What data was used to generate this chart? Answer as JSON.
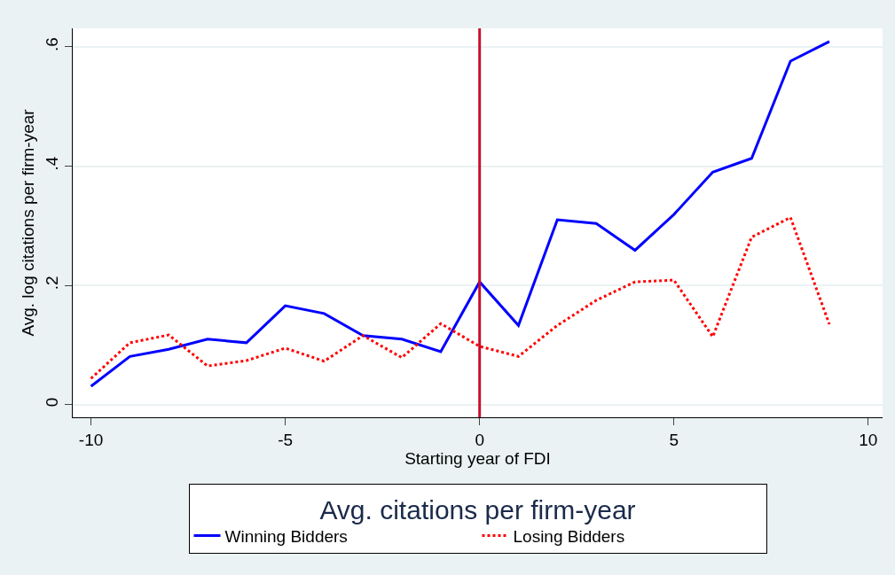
{
  "chart_data": {
    "type": "line",
    "xlabel": "Starting year of FDI",
    "ylabel": "Avg. log citations per firm-year",
    "legend_title": "Avg. citations per firm-year",
    "x": [
      -10,
      -9,
      -8,
      -7,
      -6,
      -5,
      -4,
      -3,
      -2,
      -1,
      0,
      1,
      2,
      3,
      4,
      5,
      6,
      7,
      8,
      9
    ],
    "series": [
      {
        "name": "Winning Bidders",
        "color": "#0000ff",
        "line_style": "solid",
        "values": [
          0.031,
          0.081,
          0.093,
          0.11,
          0.104,
          0.166,
          0.153,
          0.116,
          0.11,
          0.089,
          0.206,
          0.133,
          0.31,
          0.304,
          0.259,
          0.319,
          0.39,
          0.413,
          0.576,
          0.609
        ]
      },
      {
        "name": "Losing Bidders",
        "color": "#ff0000",
        "line_style": "dotted",
        "values": [
          0.044,
          0.104,
          0.117,
          0.065,
          0.074,
          0.095,
          0.073,
          0.116,
          0.079,
          0.136,
          0.098,
          0.081,
          0.133,
          0.175,
          0.206,
          0.209,
          0.114,
          0.281,
          0.314,
          0.135
        ]
      }
    ],
    "xlim": [
      -10.47,
      10.37
    ],
    "xticks": [
      -10,
      -5,
      0,
      5,
      10
    ],
    "ylim": [
      -0.021,
      0.631
    ],
    "yticks": [
      {
        "value": 0,
        "label": "0"
      },
      {
        "value": 0.2,
        "label": ".2"
      },
      {
        "value": 0.4,
        "label": ".4"
      },
      {
        "value": 0.6,
        "label": ".6"
      }
    ],
    "ref_lines": [
      {
        "axis": "x",
        "value": 0,
        "color": "#c8102e"
      }
    ],
    "grid": "y",
    "legend": "bottom"
  }
}
